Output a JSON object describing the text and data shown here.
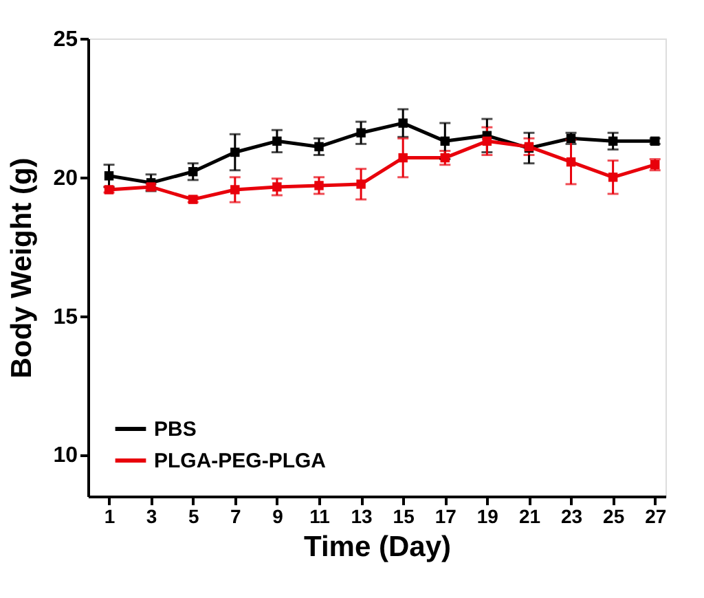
{
  "chart_data": {
    "type": "line",
    "xlabel": "Time (Day)",
    "ylabel": "Body Weight (g)",
    "x": [
      1,
      3,
      5,
      7,
      9,
      11,
      13,
      15,
      17,
      19,
      21,
      23,
      25,
      27
    ],
    "xlim": [
      0,
      27.5
    ],
    "xticks": [
      1,
      3,
      5,
      7,
      9,
      11,
      13,
      15,
      17,
      19,
      21,
      23,
      25,
      27
    ],
    "ylim": [
      8.5,
      25
    ],
    "yticks": [
      10,
      15,
      20,
      25
    ],
    "series": [
      {
        "name": "PBS",
        "color": "#000000",
        "values": [
          20.05,
          19.8,
          20.2,
          20.9,
          21.3,
          21.1,
          21.6,
          21.95,
          21.3,
          21.5,
          21.05,
          21.4,
          21.3,
          21.3
        ],
        "errors": [
          0.4,
          0.3,
          0.3,
          0.65,
          0.4,
          0.3,
          0.4,
          0.5,
          0.65,
          0.6,
          0.55,
          0.2,
          0.3,
          0.1
        ]
      },
      {
        "name": "PLGA-PEG-PLGA",
        "color": "#e8000b",
        "values": [
          19.55,
          19.65,
          19.2,
          19.55,
          19.65,
          19.7,
          19.75,
          20.7,
          20.7,
          21.3,
          21.1,
          20.55,
          20.0,
          20.45
        ],
        "errors": [
          0.1,
          0.1,
          0.1,
          0.45,
          0.3,
          0.3,
          0.55,
          0.7,
          0.25,
          0.5,
          0.3,
          0.8,
          0.6,
          0.2
        ]
      }
    ],
    "legend": "bottom left",
    "marker": "square",
    "line_style": "solid",
    "grid": false
  }
}
